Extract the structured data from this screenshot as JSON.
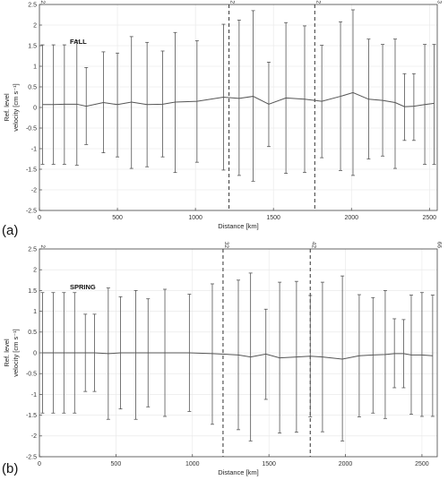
{
  "chart_data": [
    {
      "type": "line",
      "panel_label": "(a)",
      "title": "FALL",
      "xlabel": "Distance [km]",
      "ylabel_lines": [
        "Ref. level",
        "velocity [cm s⁻¹]"
      ],
      "xlim": [
        0,
        2550
      ],
      "ylim": [
        -2.5,
        2.5
      ],
      "x_ticks": [
        0,
        500,
        1000,
        1500,
        2000,
        2500
      ],
      "x_tick_labels": [
        "0",
        "500",
        "1000",
        "1500",
        "2000",
        "2500"
      ],
      "y_ticks": [
        -2.5,
        -2,
        -1.5,
        -1,
        -0.5,
        0,
        0.5,
        1,
        1.5,
        2,
        2.5
      ],
      "y_tick_labels": [
        "-2.5",
        "-2",
        "-1.5",
        "-1",
        "-0.5",
        "0",
        "0.5",
        "1",
        "1.5",
        "2",
        "2.5"
      ],
      "top_markers": [
        {
          "label": "2",
          "x": 0,
          "line": false
        },
        {
          "label": "32",
          "x": 1215,
          "line": true
        },
        {
          "label": "42",
          "x": 1765,
          "line": true
        },
        {
          "label": "63",
          "x": 2540,
          "line": false
        }
      ],
      "grid": true,
      "series": [
        {
          "x": [
            20,
            90,
            160,
            240,
            300,
            410,
            500,
            590,
            690,
            790,
            870,
            1010,
            1180,
            1280,
            1370,
            1470,
            1580,
            1700,
            1810,
            1930,
            2010,
            2110,
            2200,
            2280,
            2340,
            2400,
            2470,
            2530
          ],
          "mean": [
            0.07,
            0.07,
            0.08,
            0.08,
            0.03,
            0.12,
            0.07,
            0.13,
            0.07,
            0.08,
            0.13,
            0.15,
            0.25,
            0.22,
            0.27,
            0.08,
            0.23,
            0.2,
            0.15,
            0.27,
            0.36,
            0.2,
            0.17,
            0.12,
            0.02,
            0.03,
            0.07,
            0.1
          ],
          "upper": [
            1.52,
            1.52,
            1.52,
            1.62,
            0.97,
            1.35,
            1.32,
            1.72,
            1.58,
            1.37,
            1.82,
            1.62,
            2.02,
            2.12,
            2.35,
            1.1,
            2.06,
            1.98,
            1.51,
            2.08,
            2.37,
            1.66,
            1.53,
            1.66,
            0.82,
            0.82,
            1.53,
            1.53
          ],
          "lower": [
            -1.38,
            -1.38,
            -1.38,
            -1.4,
            -0.9,
            -1.1,
            -1.2,
            -1.48,
            -1.44,
            -1.2,
            -1.58,
            -1.33,
            -1.52,
            -1.65,
            -1.79,
            -0.95,
            -1.6,
            -1.58,
            -1.22,
            -1.53,
            -1.65,
            -1.25,
            -1.18,
            -1.48,
            -0.8,
            -0.8,
            -1.38,
            -1.38
          ]
        }
      ]
    },
    {
      "type": "line",
      "panel_label": "(b)",
      "title": "SPRING",
      "xlabel": "Distance [km]",
      "ylabel_lines": [
        "Ref. level",
        "velocity [cm s⁻¹]"
      ],
      "xlim": [
        0,
        2600
      ],
      "ylim": [
        -2.5,
        2.5
      ],
      "x_ticks": [
        0,
        500,
        1000,
        1500,
        2000,
        2500
      ],
      "x_tick_labels": [
        "0",
        "500",
        "1000",
        "1500",
        "2000",
        "2500"
      ],
      "y_ticks": [
        -2.5,
        -2,
        -1.5,
        -1,
        -0.5,
        0,
        0.5,
        1,
        1.5,
        2,
        2.5
      ],
      "y_tick_labels": [
        "-2.5",
        "-2",
        "-1.5",
        "-1",
        "-0.5",
        "0",
        "0.5",
        "1",
        "1.5",
        "2",
        "2.5"
      ],
      "top_markers": [
        {
          "label": "2",
          "x": 0,
          "line": false
        },
        {
          "label": "32",
          "x": 1200,
          "line": true
        },
        {
          "label": "42",
          "x": 1770,
          "line": true
        },
        {
          "label": "66",
          "x": 2590,
          "line": false
        }
      ],
      "grid": true,
      "series": [
        {
          "x": [
            20,
            90,
            160,
            230,
            300,
            360,
            450,
            530,
            630,
            710,
            820,
            980,
            1130,
            1300,
            1380,
            1480,
            1570,
            1680,
            1770,
            1850,
            1980,
            2090,
            2180,
            2260,
            2320,
            2380,
            2430,
            2500,
            2570
          ],
          "mean": [
            0.0,
            0.0,
            0.0,
            0.0,
            0.0,
            0.0,
            -0.02,
            0.0,
            0.0,
            0.0,
            0.0,
            0.0,
            -0.02,
            -0.05,
            -0.1,
            -0.03,
            -0.12,
            -0.1,
            -0.08,
            -0.1,
            -0.15,
            -0.07,
            -0.05,
            -0.04,
            -0.02,
            -0.02,
            -0.05,
            -0.05,
            -0.07
          ],
          "upper": [
            1.45,
            1.45,
            1.45,
            1.45,
            0.93,
            0.93,
            1.56,
            1.35,
            1.5,
            1.3,
            1.53,
            1.41,
            1.66,
            1.75,
            1.92,
            1.05,
            1.7,
            1.72,
            1.38,
            1.7,
            1.85,
            1.4,
            1.33,
            1.5,
            0.82,
            0.8,
            1.39,
            1.45,
            1.39
          ],
          "lower": [
            -1.45,
            -1.45,
            -1.45,
            -1.45,
            -0.93,
            -0.93,
            -1.6,
            -1.35,
            -1.6,
            -1.3,
            -1.53,
            -1.41,
            -1.72,
            -1.85,
            -2.12,
            -1.12,
            -1.93,
            -1.91,
            -1.54,
            -1.9,
            -2.12,
            -1.54,
            -1.45,
            -1.58,
            -0.84,
            -0.84,
            -1.48,
            -1.53,
            -1.53
          ]
        }
      ]
    }
  ]
}
